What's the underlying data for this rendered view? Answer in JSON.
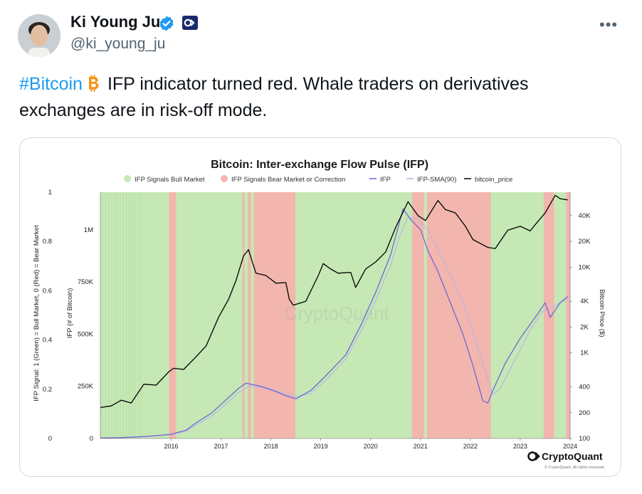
{
  "tweet": {
    "author_name": "Ki Young Ju",
    "handle": "@ki_young_ju",
    "hashtag": "#Bitcoin",
    "text_after_hashtag": "IFP indicator turned red. Whale traders on derivatives exchanges are in risk-off mode.",
    "verified_color": "#1d9bf0",
    "affiliate_badge_color": "#1b2a6b"
  },
  "chart_data": {
    "type": "line",
    "title": "Bitcoin: Inter-exchange Flow Pulse (IFP)",
    "legend": [
      {
        "label": "IFP Signals Bull Market",
        "kind": "swatch",
        "color": "#c6e8b4"
      },
      {
        "label": "IFP Signals Bear Market or Correction",
        "kind": "swatch",
        "color": "#f2b6ae"
      },
      {
        "label": "IFP",
        "kind": "line",
        "color": "#6f67d6"
      },
      {
        "label": "IFP-SMA(90)",
        "kind": "line",
        "color": "#b8b2ec"
      },
      {
        "label": "bitcoin_price",
        "kind": "line",
        "color": "#000000"
      }
    ],
    "legend_position": "top",
    "x_ticks": [
      "2016",
      "2017",
      "2018",
      "2019",
      "2020",
      "2021",
      "2022",
      "2023",
      "2024"
    ],
    "x_range": [
      2015.08,
      2024.5
    ],
    "left_axis_signal": {
      "label": "IFP Signal: 1 (Green) = Bull Market, 0 (Red) = Bear Market",
      "ticks": [
        "1",
        "0.8",
        "0.6",
        "0.4",
        "0.2",
        "0"
      ],
      "range": [
        0,
        1
      ]
    },
    "left_axis_ifp": {
      "label": "IFP (# of Bitcoin)",
      "ticks": [
        "1M",
        "750K",
        "500K",
        "250K",
        "0"
      ],
      "range": [
        0,
        1180000
      ]
    },
    "right_axis_price": {
      "label": "Bitcoin Price ($)",
      "ticks": [
        "40K",
        "20K",
        "10K",
        "4K",
        "2K",
        "1K",
        "400",
        "200",
        "100"
      ],
      "scale": "log",
      "range": [
        100,
        75000
      ]
    },
    "watermark": "CryptoQuant",
    "brand": "CryptoQuant",
    "copyright": "© CryptoQuant. All rights reserved.",
    "colors": {
      "bull": "#c6e8b4",
      "bear": "#f2b6ae",
      "ifp": "#6f67d6",
      "sma": "#b8b2ec",
      "price": "#000000"
    },
    "bear_periods": [
      [
        2016.46,
        2016.6
      ],
      [
        2017.93,
        2017.97
      ],
      [
        2018.04,
        2018.1
      ],
      [
        2018.16,
        2018.99
      ],
      [
        2021.33,
        2021.57
      ],
      [
        2021.63,
        2022.91
      ],
      [
        2023.97,
        2024.18
      ],
      [
        2024.42,
        2024.5
      ]
    ],
    "price_series": {
      "name": "bitcoin_price",
      "x": [
        2015.08,
        2015.3,
        2015.5,
        2015.7,
        2015.95,
        2016.2,
        2016.45,
        2016.55,
        2016.75,
        2017.0,
        2017.2,
        2017.45,
        2017.65,
        2017.8,
        2017.95,
        2018.05,
        2018.2,
        2018.4,
        2018.6,
        2018.8,
        2018.87,
        2018.95,
        2019.2,
        2019.45,
        2019.55,
        2019.7,
        2019.85,
        2020.1,
        2020.2,
        2020.4,
        2020.6,
        2020.8,
        2021.0,
        2021.25,
        2021.45,
        2021.6,
        2021.85,
        2022.0,
        2022.2,
        2022.4,
        2022.55,
        2022.85,
        2023.0,
        2023.25,
        2023.5,
        2023.7,
        2023.85,
        2024.0,
        2024.2,
        2024.3,
        2024.45
      ],
      "y": [
        230,
        240,
        280,
        260,
        430,
        420,
        600,
        660,
        640,
        900,
        1200,
        2600,
        4200,
        7000,
        13500,
        16000,
        8500,
        8000,
        6500,
        6600,
        4200,
        3600,
        4000,
        8000,
        11000,
        9500,
        8500,
        8700,
        5800,
        9500,
        11500,
        15000,
        29000,
        58000,
        40000,
        35000,
        60000,
        47000,
        43000,
        30000,
        21000,
        17000,
        16500,
        27000,
        30000,
        26500,
        34000,
        43000,
        69000,
        63000,
        61000
      ]
    },
    "ifp_series": {
      "name": "IFP",
      "x": [
        2015.08,
        2015.5,
        2016.0,
        2016.5,
        2016.8,
        2017.0,
        2017.3,
        2017.6,
        2017.85,
        2018.0,
        2018.3,
        2018.6,
        2018.8,
        2019.0,
        2019.3,
        2019.6,
        2020.0,
        2020.3,
        2020.6,
        2020.9,
        2021.05,
        2021.15,
        2021.3,
        2021.5,
        2021.65,
        2021.85,
        2022.1,
        2022.35,
        2022.55,
        2022.75,
        2022.85,
        2022.95,
        2023.2,
        2023.5,
        2023.8,
        2024.0,
        2024.1,
        2024.3,
        2024.45
      ],
      "y": [
        2000,
        4000,
        10000,
        20000,
        40000,
        75000,
        120000,
        185000,
        240000,
        265000,
        250000,
        225000,
        205000,
        190000,
        230000,
        300000,
        400000,
        540000,
        700000,
        880000,
        1010000,
        1100000,
        1050000,
        1000000,
        900000,
        800000,
        650000,
        500000,
        350000,
        180000,
        170000,
        230000,
        360000,
        480000,
        580000,
        650000,
        580000,
        650000,
        680000
      ]
    },
    "sma_series": {
      "name": "IFP-SMA(90)",
      "x": [
        2015.08,
        2015.5,
        2016.0,
        2016.5,
        2016.8,
        2017.0,
        2017.3,
        2017.6,
        2017.85,
        2018.05,
        2018.4,
        2018.7,
        2019.0,
        2019.3,
        2019.6,
        2020.0,
        2020.3,
        2020.6,
        2020.9,
        2021.1,
        2021.25,
        2021.45,
        2021.65,
        2021.9,
        2022.15,
        2022.4,
        2022.6,
        2022.8,
        2022.95,
        2023.1,
        2023.4,
        2023.7,
        2023.95,
        2024.15,
        2024.45
      ],
      "y": [
        1500,
        3500,
        9000,
        18000,
        35000,
        65000,
        105000,
        165000,
        220000,
        250000,
        245000,
        220000,
        200000,
        215000,
        280000,
        380000,
        510000,
        660000,
        830000,
        980000,
        1060000,
        1050000,
        1000000,
        880000,
        760000,
        620000,
        470000,
        320000,
        210000,
        240000,
        380000,
        520000,
        610000,
        630000,
        670000
      ]
    }
  }
}
